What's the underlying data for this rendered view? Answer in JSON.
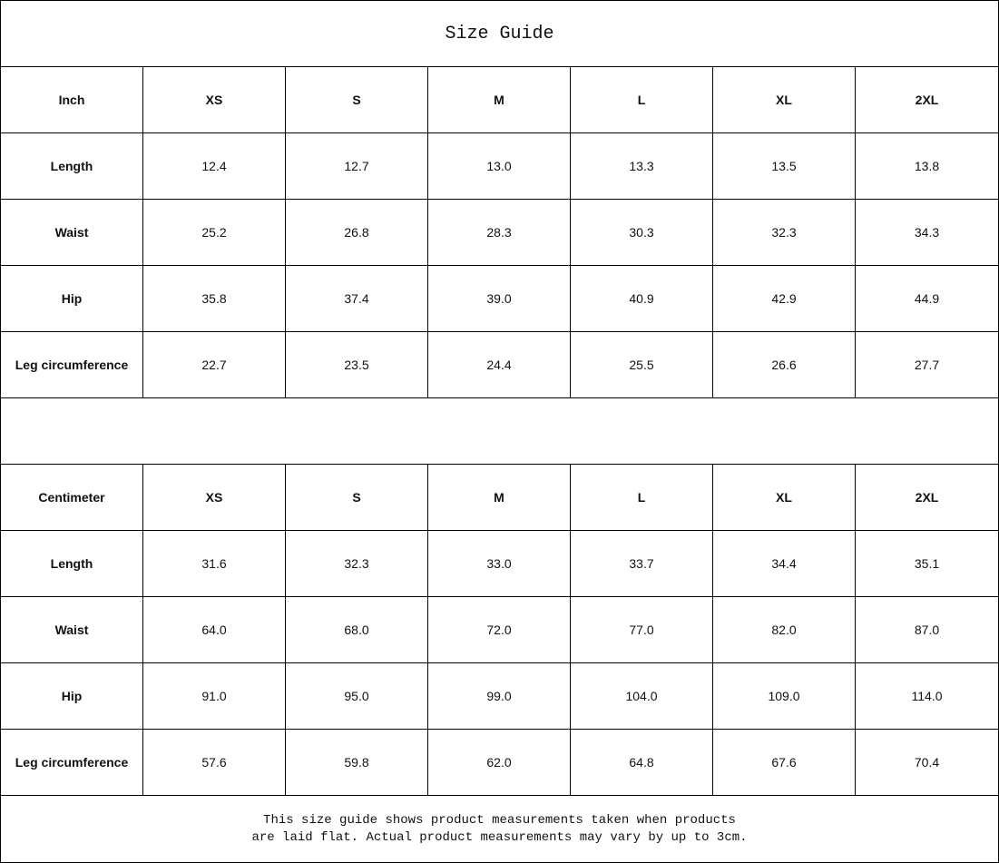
{
  "title": "Size Guide",
  "tables": [
    {
      "unit": "Inch",
      "sizes": [
        "XS",
        "S",
        "M",
        "L",
        "XL",
        "2XL"
      ],
      "rows": [
        {
          "label": "Length",
          "values": [
            "12.4",
            "12.7",
            "13.0",
            "13.3",
            "13.5",
            "13.8"
          ]
        },
        {
          "label": "Waist",
          "values": [
            "25.2",
            "26.8",
            "28.3",
            "30.3",
            "32.3",
            "34.3"
          ]
        },
        {
          "label": "Hip",
          "values": [
            "35.8",
            "37.4",
            "39.0",
            "40.9",
            "42.9",
            "44.9"
          ]
        },
        {
          "label": "Leg circumference",
          "values": [
            "22.7",
            "23.5",
            "24.4",
            "25.5",
            "26.6",
            "27.7"
          ]
        }
      ]
    },
    {
      "unit": "Centimeter",
      "sizes": [
        "XS",
        "S",
        "M",
        "L",
        "XL",
        "2XL"
      ],
      "rows": [
        {
          "label": "Length",
          "values": [
            "31.6",
            "32.3",
            "33.0",
            "33.7",
            "34.4",
            "35.1"
          ]
        },
        {
          "label": "Waist",
          "values": [
            "64.0",
            "68.0",
            "72.0",
            "77.0",
            "82.0",
            "87.0"
          ]
        },
        {
          "label": "Hip",
          "values": [
            "91.0",
            "95.0",
            "99.0",
            "104.0",
            "109.0",
            "114.0"
          ]
        },
        {
          "label": "Leg circumference",
          "values": [
            "57.6",
            "59.8",
            "62.0",
            "64.8",
            "67.6",
            "70.4"
          ]
        }
      ]
    }
  ],
  "note": {
    "line1": "This size guide shows product measurements taken when products",
    "line2": "are laid flat. Actual product measurements may vary by up to 3cm."
  }
}
